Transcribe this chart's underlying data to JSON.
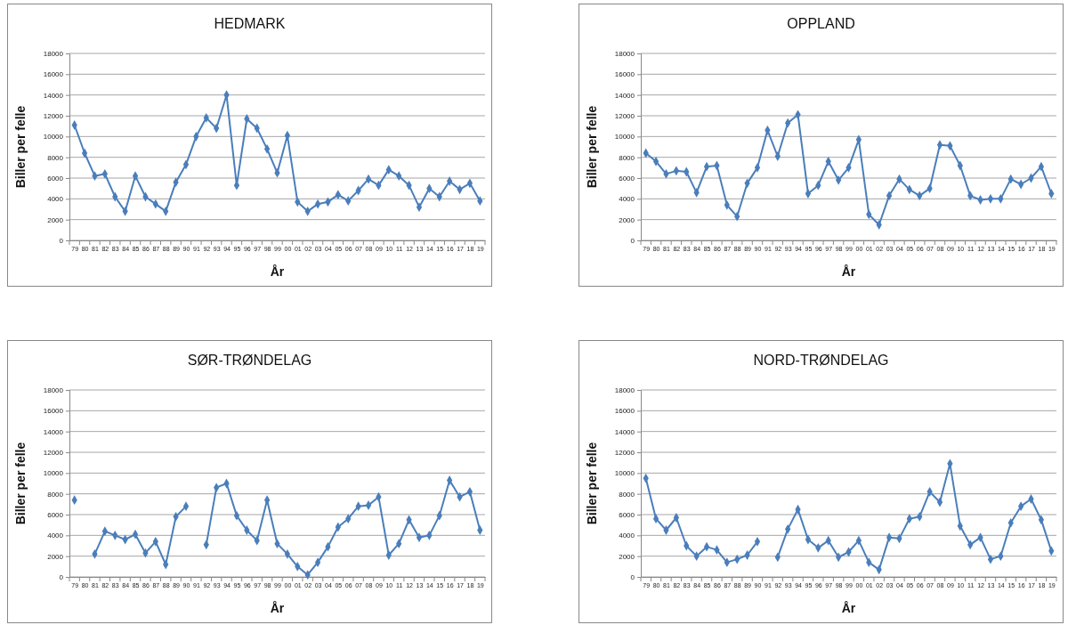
{
  "chart_data": [
    {
      "type": "line",
      "title": "HEDMARK",
      "xlabel": "År",
      "ylabel": "Biller per felle",
      "categories": [
        "79",
        "80",
        "81",
        "82",
        "83",
        "84",
        "85",
        "86",
        "87",
        "88",
        "89",
        "90",
        "91",
        "92",
        "93",
        "94",
        "95",
        "96",
        "97",
        "98",
        "99",
        "00",
        "01",
        "02",
        "03",
        "04",
        "05",
        "06",
        "07",
        "08",
        "09",
        "10",
        "11",
        "12",
        "13",
        "14",
        "15",
        "16",
        "17",
        "18",
        "19"
      ],
      "ylim": [
        0,
        18000
      ],
      "yticks": [
        0,
        2000,
        4000,
        6000,
        8000,
        10000,
        12000,
        14000,
        16000,
        18000
      ],
      "grid": "y",
      "marker": "diamond",
      "series": [
        {
          "color": "#4a7ebb",
          "values": [
            11100,
            8400,
            6200,
            6400,
            4200,
            2800,
            6200,
            4200,
            3500,
            2800,
            5600,
            7300,
            10000,
            11800,
            10800,
            14000,
            5300,
            11700,
            10800,
            8800,
            6500,
            10100,
            3700,
            2800,
            3500,
            3700,
            4400,
            3800,
            4800,
            5900,
            5300,
            6800,
            6200,
            5300,
            3200,
            5000,
            4200,
            5700,
            4900,
            5500,
            3800
          ]
        }
      ]
    },
    {
      "type": "line",
      "title": "OPPLAND",
      "xlabel": "År",
      "ylabel": "Biller per felle",
      "categories": [
        "79",
        "80",
        "81",
        "82",
        "83",
        "84",
        "85",
        "86",
        "87",
        "88",
        "89",
        "90",
        "91",
        "92",
        "93",
        "94",
        "95",
        "96",
        "97",
        "98",
        "99",
        "00",
        "01",
        "02",
        "03",
        "04",
        "05",
        "06",
        "07",
        "08",
        "09",
        "10",
        "11",
        "12",
        "13",
        "14",
        "15",
        "16",
        "17",
        "18",
        "19"
      ],
      "ylim": [
        0,
        18000
      ],
      "yticks": [
        0,
        2000,
        4000,
        6000,
        8000,
        10000,
        12000,
        14000,
        16000,
        18000
      ],
      "grid": "y",
      "marker": "diamond",
      "series": [
        {
          "color": "#4a7ebb",
          "values": [
            8400,
            7600,
            6400,
            6700,
            6600,
            4600,
            7100,
            7200,
            3400,
            2300,
            5500,
            7000,
            10600,
            8100,
            11300,
            12100,
            4500,
            5300,
            7600,
            5800,
            7000,
            9700,
            2500,
            1500,
            4300,
            5900,
            4900,
            4300,
            5000,
            9200,
            9100,
            7200,
            4300,
            3900,
            4000,
            4000,
            5900,
            5400,
            6000,
            7100,
            4500
          ]
        }
      ]
    },
    {
      "type": "line",
      "title": "SØR-TRØNDELAG",
      "xlabel": "År",
      "ylabel": "Biller per felle",
      "categories": [
        "79",
        "80",
        "81",
        "82",
        "83",
        "84",
        "85",
        "86",
        "87",
        "88",
        "89",
        "90",
        "91",
        "92",
        "93",
        "94",
        "95",
        "96",
        "97",
        "98",
        "99",
        "00",
        "01",
        "02",
        "03",
        "04",
        "05",
        "06",
        "07",
        "08",
        "09",
        "10",
        "11",
        "12",
        "13",
        "14",
        "15",
        "16",
        "17",
        "18",
        "19"
      ],
      "ylim": [
        0,
        18000
      ],
      "yticks": [
        0,
        2000,
        4000,
        6000,
        8000,
        10000,
        12000,
        14000,
        16000,
        18000
      ],
      "grid": "y",
      "marker": "diamond",
      "series": [
        {
          "color": "#4a7ebb",
          "values": [
            7400,
            null,
            2200,
            4400,
            4000,
            3600,
            4100,
            2300,
            3400,
            1200,
            5800,
            6800,
            null,
            3100,
            8600,
            9000,
            5900,
            4500,
            3500,
            7400,
            3200,
            2200,
            1000,
            200,
            1400,
            2900,
            4800,
            5600,
            6800,
            6900,
            7700,
            2100,
            3200,
            5500,
            3800,
            4000,
            5900,
            9300,
            7700,
            8200,
            4500
          ]
        }
      ]
    },
    {
      "type": "line",
      "title": "NORD-TRØNDELAG",
      "xlabel": "År",
      "ylabel": "Biller per felle",
      "categories": [
        "79",
        "80",
        "81",
        "82",
        "83",
        "84",
        "85",
        "86",
        "87",
        "88",
        "89",
        "90",
        "91",
        "92",
        "93",
        "94",
        "95",
        "96",
        "97",
        "98",
        "99",
        "00",
        "01",
        "02",
        "03",
        "04",
        "05",
        "06",
        "07",
        "08",
        "09",
        "10",
        "11",
        "12",
        "13",
        "14",
        "15",
        "16",
        "17",
        "18",
        "19"
      ],
      "ylim": [
        0,
        18000
      ],
      "yticks": [
        0,
        2000,
        4000,
        6000,
        8000,
        10000,
        12000,
        14000,
        16000,
        18000
      ],
      "grid": "y",
      "marker": "diamond",
      "series": [
        {
          "color": "#4a7ebb",
          "values": [
            9500,
            5600,
            4500,
            5700,
            3000,
            2000,
            2900,
            2600,
            1400,
            1700,
            2100,
            3400,
            null,
            1900,
            4600,
            6500,
            3600,
            2800,
            3500,
            1900,
            2400,
            3500,
            1400,
            700,
            3800,
            3700,
            5600,
            5800,
            8200,
            7200,
            10900,
            4900,
            3100,
            3800,
            1700,
            2000,
            5200,
            6800,
            7500,
            5500,
            2500
          ]
        }
      ]
    }
  ]
}
